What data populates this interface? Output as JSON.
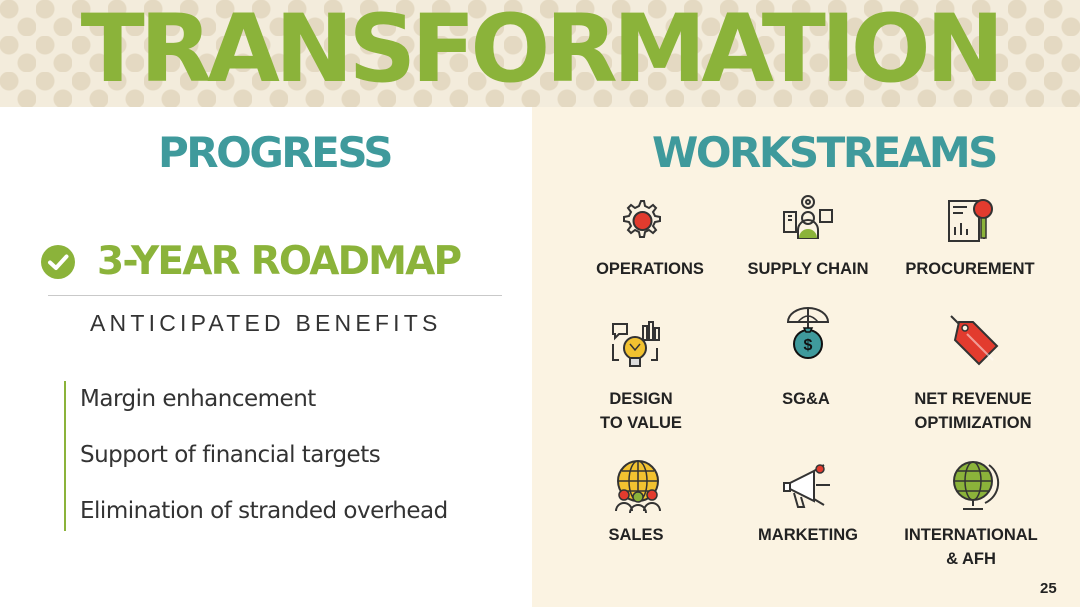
{
  "header": {
    "title": "TRANSFORMATION"
  },
  "progress": {
    "title": "PROGRESS",
    "roadmap": "3-YEAR ROADMAP",
    "benefits_heading": "ANTICIPATED BENEFITS",
    "benefits": [
      "Margin enhancement",
      "Support of financial targets",
      "Elimination of stranded overhead"
    ]
  },
  "workstreams": {
    "title": "WORKSTREAMS",
    "items": [
      {
        "line1": "OPERATIONS",
        "line2": "",
        "icon": "gear-icon"
      },
      {
        "line1": "SUPPLY CHAIN",
        "line2": "",
        "icon": "supply-chain-icon"
      },
      {
        "line1": "PROCUREMENT",
        "line2": "",
        "icon": "document-magnifier-icon"
      },
      {
        "line1": "DESIGN",
        "line2": "TO VALUE",
        "icon": "lightbulb-chart-icon"
      },
      {
        "line1": "SG&A",
        "line2": "",
        "icon": "money-bag-umbrella-icon"
      },
      {
        "line1": "NET REVENUE",
        "line2": "OPTIMIZATION",
        "icon": "price-tag-icon"
      },
      {
        "line1": "SALES",
        "line2": "",
        "icon": "globe-people-icon"
      },
      {
        "line1": "MARKETING",
        "line2": "",
        "icon": "megaphone-icon"
      },
      {
        "line1": "INTERNATIONAL",
        "line2": "& AFH",
        "icon": "globe-stand-icon"
      }
    ]
  },
  "colors": {
    "green": "#8bb33a",
    "teal": "#3f9a9c",
    "red": "#e23b2e",
    "cream": "#fbf3e2"
  },
  "page_number": "25"
}
